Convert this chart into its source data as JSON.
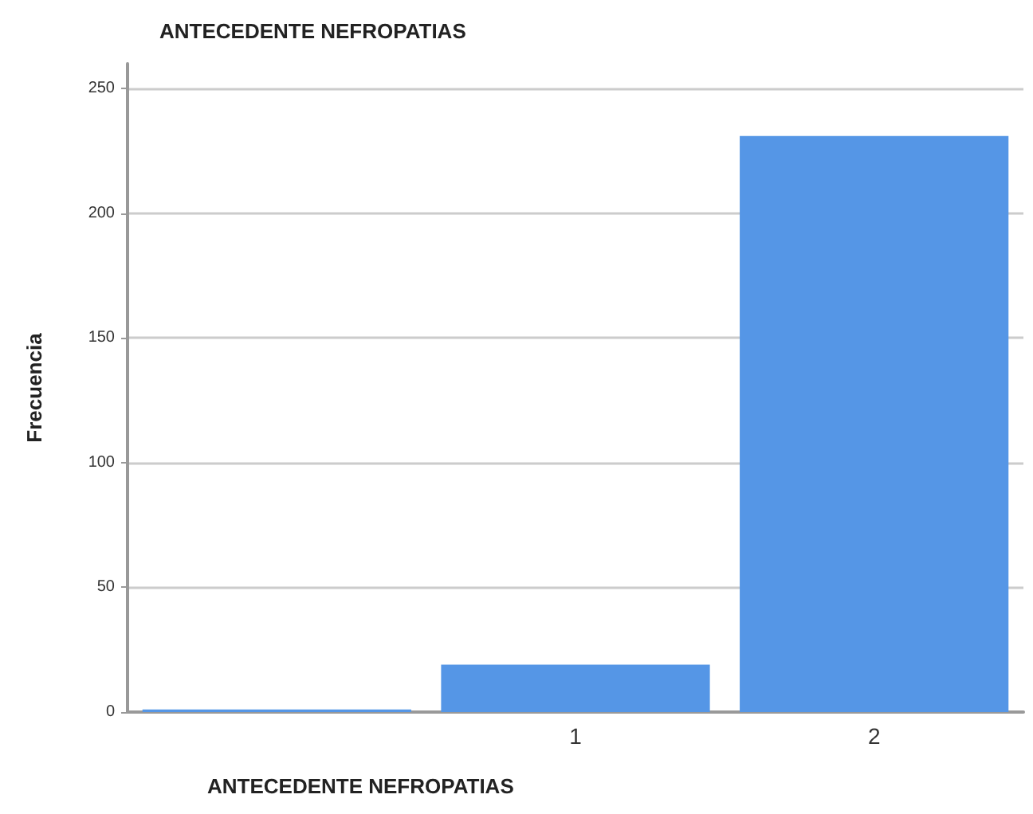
{
  "chart_data": {
    "type": "bar",
    "title": "ANTECEDENTE NEFROPATIAS",
    "xlabel": "ANTECEDENTE NEFROPATIAS",
    "ylabel": "Frecuencia",
    "categories": [
      null,
      "1",
      "2"
    ],
    "values": [
      1,
      19,
      231
    ],
    "color": "#5596e6",
    "ylim": [
      0,
      260
    ],
    "yticks": [
      0,
      50,
      100,
      150,
      200,
      250
    ],
    "grid": "y"
  }
}
